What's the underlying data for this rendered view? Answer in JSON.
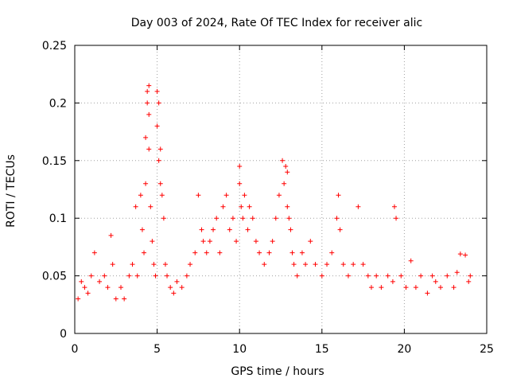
{
  "chart_data": {
    "type": "scatter",
    "title": "Day 003 of 2024, Rate Of TEC Index for receiver alic",
    "xlabel": "GPS time / hours",
    "ylabel": "ROTI / TECUs",
    "xlim": [
      0,
      25
    ],
    "ylim": [
      0,
      0.25
    ],
    "x_ticks": [
      0,
      5,
      10,
      15,
      20,
      25
    ],
    "y_ticks": [
      0,
      0.05,
      0.1,
      0.15,
      0.2,
      0.25
    ],
    "x_tick_labels": [
      "0",
      "5",
      "10",
      "15",
      "20",
      "25"
    ],
    "y_tick_labels": [
      "0",
      "0.05",
      "0.1",
      "0.15",
      "0.2",
      "0.25"
    ],
    "grid": true,
    "marker": "+",
    "color": "#ff0000",
    "series": [
      {
        "x": [
          0.2,
          0.4,
          0.6,
          0.8,
          1.0,
          1.2,
          1.5,
          1.8,
          2.0,
          2.2,
          2.3,
          2.5,
          2.8,
          3.0,
          3.3,
          3.5,
          3.7,
          3.8,
          4.0,
          4.1,
          4.2,
          4.3,
          4.3,
          4.4,
          4.4,
          4.5,
          4.5,
          4.5,
          4.6,
          4.7,
          4.8,
          4.9,
          5.0,
          5.0,
          5.1,
          5.1,
          5.2,
          5.2,
          5.3,
          5.4,
          5.5,
          5.6,
          5.8,
          6.0,
          6.2,
          6.5,
          6.8,
          7.0,
          7.3,
          7.5,
          7.7,
          7.8,
          8.0,
          8.2,
          8.4,
          8.6,
          8.8,
          9.0,
          9.2,
          9.4,
          9.6,
          9.8,
          10.0,
          10.0,
          10.1,
          10.2,
          10.3,
          10.5,
          10.6,
          10.8,
          11.0,
          11.2,
          11.5,
          11.8,
          12.0,
          12.2,
          12.4,
          12.6,
          12.7,
          12.8,
          12.9,
          12.9,
          13.0,
          13.1,
          13.2,
          13.3,
          13.5,
          13.8,
          14.0,
          14.3,
          14.6,
          15.0,
          15.3,
          15.6,
          15.9,
          16.0,
          16.1,
          16.3,
          16.6,
          16.9,
          17.2,
          17.5,
          17.8,
          18.0,
          18.3,
          18.6,
          19.0,
          19.3,
          19.4,
          19.5,
          19.8,
          20.1,
          20.4,
          20.7,
          21.0,
          21.4,
          21.7,
          21.9,
          22.2,
          22.6,
          23.0,
          23.2,
          23.4,
          23.7,
          23.9,
          24.0
        ],
        "y": [
          0.03,
          0.045,
          0.04,
          0.035,
          0.05,
          0.07,
          0.045,
          0.05,
          0.04,
          0.085,
          0.06,
          0.03,
          0.04,
          0.03,
          0.05,
          0.06,
          0.11,
          0.05,
          0.12,
          0.09,
          0.07,
          0.13,
          0.17,
          0.21,
          0.2,
          0.215,
          0.19,
          0.16,
          0.11,
          0.08,
          0.06,
          0.05,
          0.21,
          0.18,
          0.2,
          0.15,
          0.13,
          0.16,
          0.12,
          0.1,
          0.06,
          0.05,
          0.04,
          0.035,
          0.045,
          0.04,
          0.05,
          0.06,
          0.07,
          0.12,
          0.09,
          0.08,
          0.07,
          0.08,
          0.09,
          0.1,
          0.07,
          0.11,
          0.12,
          0.09,
          0.1,
          0.08,
          0.13,
          0.145,
          0.11,
          0.1,
          0.12,
          0.09,
          0.11,
          0.1,
          0.08,
          0.07,
          0.06,
          0.07,
          0.08,
          0.1,
          0.12,
          0.15,
          0.13,
          0.145,
          0.14,
          0.11,
          0.1,
          0.09,
          0.07,
          0.06,
          0.05,
          0.07,
          0.06,
          0.08,
          0.06,
          0.05,
          0.06,
          0.07,
          0.1,
          0.12,
          0.09,
          0.06,
          0.05,
          0.06,
          0.11,
          0.06,
          0.05,
          0.04,
          0.05,
          0.04,
          0.05,
          0.045,
          0.11,
          0.1,
          0.05,
          0.04,
          0.063,
          0.04,
          0.05,
          0.035,
          0.05,
          0.045,
          0.04,
          0.05,
          0.04,
          0.053,
          0.069,
          0.068,
          0.045,
          0.05
        ]
      }
    ]
  }
}
